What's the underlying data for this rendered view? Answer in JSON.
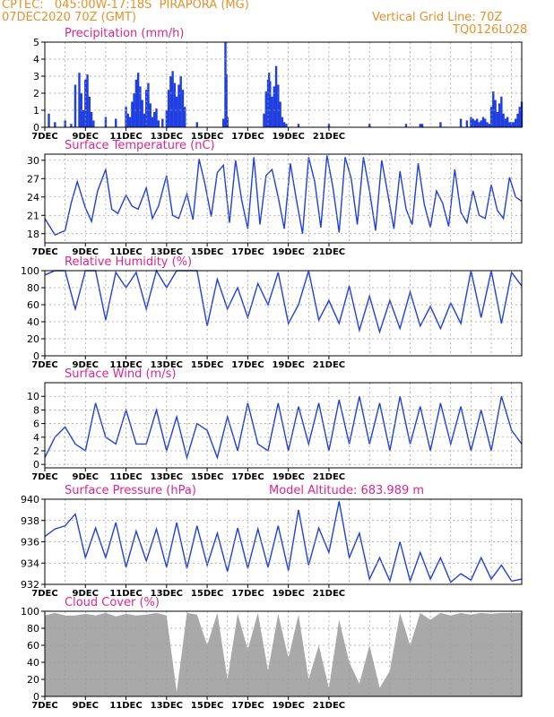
{
  "header": {
    "line1": "CPTEC:   045:00W-17:18S  PIRAPORA (MG)",
    "line2": "07DEC2020 70Z (GMT)",
    "grid_note": "Vertical Grid Line: 70Z",
    "model_code": "TQ0126L028"
  },
  "colors": {
    "header": "#e8902a",
    "title": "#e0258a",
    "series": "#1f3fe0",
    "cloud": "#a9a9a9",
    "grid": "#9a9a9a"
  },
  "chart_data": [
    {
      "id": "precip",
      "type": "bar",
      "title": "Precipitation (mm/h)",
      "x_ticks": [
        "7DEC",
        "9DEC",
        "11DEC",
        "13DEC",
        "15DEC",
        "17DEC",
        "19DEC",
        "21DEC"
      ],
      "ylim": [
        0,
        5
      ],
      "y_ticks": [
        0,
        1,
        2,
        3,
        4,
        5
      ],
      "x": [
        0.2,
        0.5,
        1.0,
        1.3,
        1.5,
        1.7,
        1.8,
        1.9,
        2.0,
        2.1,
        2.2,
        2.3,
        2.4,
        3.0,
        3.5,
        4.0,
        4.1,
        4.2,
        4.3,
        4.4,
        4.5,
        4.6,
        4.7,
        4.8,
        4.9,
        5.0,
        5.1,
        5.2,
        5.3,
        5.4,
        5.5,
        5.6,
        5.8,
        6.0,
        6.1,
        6.2,
        6.3,
        6.4,
        6.5,
        6.6,
        6.7,
        6.8,
        6.9,
        7.5,
        8.8,
        8.9,
        8.95,
        9.0,
        10.8,
        10.9,
        11.0,
        11.05,
        11.1,
        11.2,
        11.3,
        11.4,
        11.5,
        11.6,
        11.7,
        11.8,
        11.9,
        12.5,
        14.0,
        16.0,
        17.8,
        18.5,
        18.6,
        19.5,
        20.5,
        20.8,
        21.0,
        21.1,
        21.2,
        21.3,
        21.4,
        21.5,
        21.6,
        21.7,
        21.8,
        21.9,
        22.0,
        22.1,
        22.2,
        22.3,
        22.4,
        22.5,
        22.6,
        22.7,
        22.8,
        22.9,
        23.0,
        23.1,
        23.2,
        23.3,
        23.4,
        23.5
      ],
      "values": [
        0.8,
        0.3,
        0.4,
        0.2,
        2.5,
        3.2,
        2.0,
        1.0,
        2.8,
        3.1,
        1.8,
        0.9,
        0.4,
        0.6,
        0.5,
        1.2,
        0.8,
        0.6,
        1.5,
        2.0,
        2.8,
        3.2,
        2.4,
        1.6,
        0.8,
        2.2,
        2.6,
        1.4,
        0.6,
        0.9,
        1.1,
        0.4,
        0.5,
        1.0,
        2.2,
        3.0,
        3.3,
        2.6,
        1.8,
        2.5,
        3.0,
        2.2,
        1.2,
        0.3,
        0.5,
        5.0,
        3.1,
        0.6,
        0.8,
        2.1,
        2.8,
        3.2,
        2.7,
        1.8,
        2.4,
        3.6,
        2.5,
        1.5,
        0.6,
        0.3,
        0.2,
        0.2,
        0.2,
        0.2,
        0.2,
        0.2,
        0.2,
        0.3,
        0.5,
        0.4,
        0.6,
        0.5,
        0.4,
        0.5,
        0.3,
        0.4,
        0.6,
        0.5,
        0.3,
        0.2,
        1.2,
        2.1,
        1.6,
        0.9,
        1.4,
        1.8,
        0.8,
        0.5,
        0.6,
        0.3,
        0.3,
        0.3,
        0.5,
        0.8,
        1.2,
        1.5
      ],
      "vgrid": true,
      "hgrid": true
    },
    {
      "id": "temp",
      "type": "line",
      "title": "Surface Temperature (nC)",
      "x_ticks": [
        "7DEC",
        "9DEC",
        "11DEC",
        "13DEC",
        "15DEC",
        "17DEC",
        "19DEC",
        "21DEC"
      ],
      "ylim": [
        16.5,
        31
      ],
      "y_ticks": [
        18,
        21,
        24,
        27,
        30
      ],
      "x": [
        0,
        0.5,
        1.0,
        1.3,
        1.6,
        2.0,
        2.3,
        2.6,
        3.0,
        3.3,
        3.6,
        4.0,
        4.3,
        4.6,
        5.0,
        5.3,
        5.6,
        6.0,
        6.3,
        6.6,
        7.0,
        7.3,
        7.6,
        7.9,
        8.2,
        8.5,
        8.8,
        9.1,
        9.4,
        9.7,
        10.0,
        10.3,
        10.6,
        10.9,
        11.2,
        11.5,
        11.8,
        12.1,
        12.4,
        12.7,
        13.0,
        13.3,
        13.6,
        13.9,
        14.2,
        14.5,
        14.8,
        15.1,
        15.4,
        15.7,
        16.0,
        16.3,
        16.6,
        16.9,
        17.2,
        17.5,
        17.8,
        18.1,
        18.4,
        18.7,
        19.0,
        19.3,
        19.6,
        19.9,
        20.2,
        20.5,
        20.8,
        21.1,
        21.4,
        21.7,
        22.0,
        22.3,
        22.6,
        22.9,
        23.2,
        23.5
      ],
      "values": [
        20.5,
        17.8,
        18.5,
        23,
        26.5,
        22.2,
        20,
        25,
        28.5,
        22,
        21.3,
        24.3,
        22.5,
        22,
        25.5,
        20.5,
        22.5,
        27.5,
        21,
        20.5,
        24.5,
        20.3,
        30.2,
        26,
        20.8,
        28,
        29.2,
        19.8,
        30,
        23.5,
        18.8,
        30.5,
        19.5,
        27.5,
        28.5,
        24,
        18.8,
        29.5,
        23.5,
        18,
        30.5,
        26.5,
        19,
        30.8,
        25.5,
        18.2,
        30.5,
        27,
        19.5,
        30.5,
        25,
        18.5,
        30,
        24.5,
        18.8,
        28.2,
        22,
        19.5,
        29.5,
        22.8,
        19,
        25,
        23,
        19.2,
        28.5,
        21.5,
        19.8,
        25,
        21,
        20.5,
        26,
        21.8,
        20.5,
        27.2,
        24,
        23.3
      ],
      "vgrid": true,
      "hgrid": true
    },
    {
      "id": "rh",
      "type": "line",
      "title": "Relative Humidity (%)",
      "x_ticks": [
        "7DEC",
        "9DEC",
        "11DEC",
        "13DEC",
        "15DEC",
        "17DEC",
        "19DEC",
        "21DEC"
      ],
      "ylim": [
        0,
        100
      ],
      "y_ticks": [
        0,
        20,
        40,
        60,
        80,
        100
      ],
      "x": [
        0,
        0.5,
        1.0,
        1.5,
        2.0,
        2.5,
        3.0,
        3.5,
        4.0,
        4.5,
        5.0,
        5.5,
        6.0,
        6.5,
        7.0,
        7.5,
        8.0,
        8.5,
        9.0,
        9.5,
        10.0,
        10.5,
        11.0,
        11.5,
        12.0,
        12.5,
        13.0,
        13.5,
        14.0,
        14.5,
        15.0,
        15.5,
        16.0,
        16.5,
        17.0,
        17.5,
        18.0,
        18.5,
        19.0,
        19.5,
        20.0,
        20.5,
        21.0,
        21.5,
        22.0,
        22.5,
        23.0,
        23.5
      ],
      "values": [
        95,
        100,
        100,
        55,
        100,
        100,
        42,
        98,
        80,
        98,
        55,
        100,
        80,
        100,
        100,
        100,
        35,
        90,
        55,
        80,
        45,
        85,
        60,
        98,
        38,
        60,
        100,
        42,
        65,
        38,
        82,
        30,
        70,
        28,
        65,
        32,
        75,
        35,
        58,
        32,
        62,
        38,
        100,
        45,
        100,
        38,
        98,
        82
      ],
      "vgrid": true,
      "hgrid": true
    },
    {
      "id": "wind",
      "type": "line",
      "title": "Surface Wind (m/s)",
      "x_ticks": [
        "7DEC",
        "9DEC",
        "11DEC",
        "13DEC",
        "15DEC",
        "17DEC",
        "19DEC",
        "21DEC"
      ],
      "ylim": [
        -0.5,
        12
      ],
      "y_ticks": [
        0,
        2,
        4,
        6,
        8,
        10
      ],
      "x": [
        0,
        0.5,
        1.0,
        1.5,
        2.0,
        2.5,
        3.0,
        3.5,
        4.0,
        4.5,
        5.0,
        5.5,
        6.0,
        6.5,
        7.0,
        7.5,
        8.0,
        8.5,
        9.0,
        9.5,
        10.0,
        10.5,
        11.0,
        11.5,
        12.0,
        12.5,
        13.0,
        13.5,
        14.0,
        14.5,
        15.0,
        15.5,
        16.0,
        16.5,
        17.0,
        17.5,
        18.0,
        18.5,
        19.0,
        19.5,
        20.0,
        20.5,
        21.0,
        21.5,
        22.0,
        22.5,
        23.0,
        23.5
      ],
      "values": [
        1,
        4,
        5.5,
        3,
        2,
        9,
        4,
        3,
        8,
        3,
        3,
        8,
        2,
        7,
        1,
        6,
        5,
        1,
        7,
        2,
        9,
        3,
        2,
        9,
        2,
        8.5,
        3,
        9,
        2,
        9.5,
        3,
        10,
        3,
        9,
        2,
        10,
        3,
        8.5,
        2,
        9,
        3,
        8.5,
        2,
        8,
        2,
        10,
        5,
        3
      ],
      "vgrid": true,
      "hgrid": true
    },
    {
      "id": "pres",
      "type": "line",
      "title": "Surface Pressure (hPa)",
      "annotation": "Model Altitude: 683.989 m",
      "x_ticks": [
        "7DEC",
        "9DEC",
        "11DEC",
        "13DEC",
        "15DEC",
        "17DEC",
        "19DEC",
        "21DEC"
      ],
      "ylim": [
        932,
        940
      ],
      "y_ticks": [
        932,
        934,
        936,
        938,
        940
      ],
      "x": [
        0,
        0.5,
        1.0,
        1.5,
        2.0,
        2.5,
        3.0,
        3.5,
        4.0,
        4.5,
        5.0,
        5.5,
        6.0,
        6.5,
        7.0,
        7.5,
        8.0,
        8.5,
        9.0,
        9.5,
        10.0,
        10.5,
        11.0,
        11.5,
        12.0,
        12.5,
        13.0,
        13.5,
        14.0,
        14.5,
        15.0,
        15.5,
        16.0,
        16.5,
        17.0,
        17.5,
        18.0,
        18.5,
        19.0,
        19.5,
        20.0,
        20.5,
        21.0,
        21.5,
        22.0,
        22.5,
        23.0,
        23.5
      ],
      "values": [
        936.5,
        937.2,
        937.5,
        938.6,
        934.5,
        937.3,
        934.5,
        937.8,
        933.6,
        937,
        934.2,
        937.2,
        933.6,
        937.8,
        933.5,
        937.5,
        933.8,
        936.8,
        933.2,
        937.3,
        933.5,
        937.2,
        933.6,
        937.5,
        933.3,
        939,
        933.8,
        937.3,
        935,
        939.8,
        934.5,
        936.8,
        932.5,
        934.5,
        932.3,
        936,
        932.3,
        935,
        932.5,
        934.5,
        932.2,
        933,
        932.4,
        934.5,
        932.5,
        933.8,
        932.3,
        932.5
      ],
      "vgrid": true,
      "hgrid": true
    },
    {
      "id": "cloud",
      "type": "area",
      "title": "Cloud Cover (%)",
      "x_ticks": [
        "7DEC",
        "9DEC",
        "11DEC",
        "13DEC",
        "15DEC",
        "17DEC",
        "19DEC",
        "21DEC"
      ],
      "ylim": [
        0,
        100
      ],
      "y_ticks": [
        0,
        20,
        40,
        60,
        80,
        100
      ],
      "x": [
        0,
        0.5,
        1.0,
        1.5,
        2.0,
        2.5,
        3.0,
        3.5,
        4.0,
        4.5,
        5.0,
        5.5,
        6.0,
        6.5,
        7.0,
        7.5,
        8.0,
        8.5,
        9.0,
        9.5,
        10.0,
        10.5,
        11.0,
        11.5,
        12.0,
        12.5,
        13.0,
        13.5,
        14.0,
        14.5,
        15.0,
        15.5,
        16.0,
        16.5,
        17.0,
        17.5,
        18.0,
        18.5,
        19.0,
        19.5,
        20.0,
        20.5,
        21.0,
        21.5,
        22.0,
        22.5,
        23.0,
        23.5
      ],
      "values": [
        95,
        98,
        95,
        95,
        97,
        95,
        98,
        94,
        97,
        95,
        96,
        98,
        95,
        5,
        98,
        96,
        60,
        98,
        20,
        97,
        55,
        98,
        30,
        97,
        45,
        96,
        20,
        60,
        10,
        90,
        40,
        15,
        60,
        10,
        30,
        98,
        60,
        98,
        90,
        98,
        95,
        98,
        96,
        98,
        97,
        98,
        98,
        98
      ],
      "vgrid": true,
      "hgrid": true
    }
  ]
}
